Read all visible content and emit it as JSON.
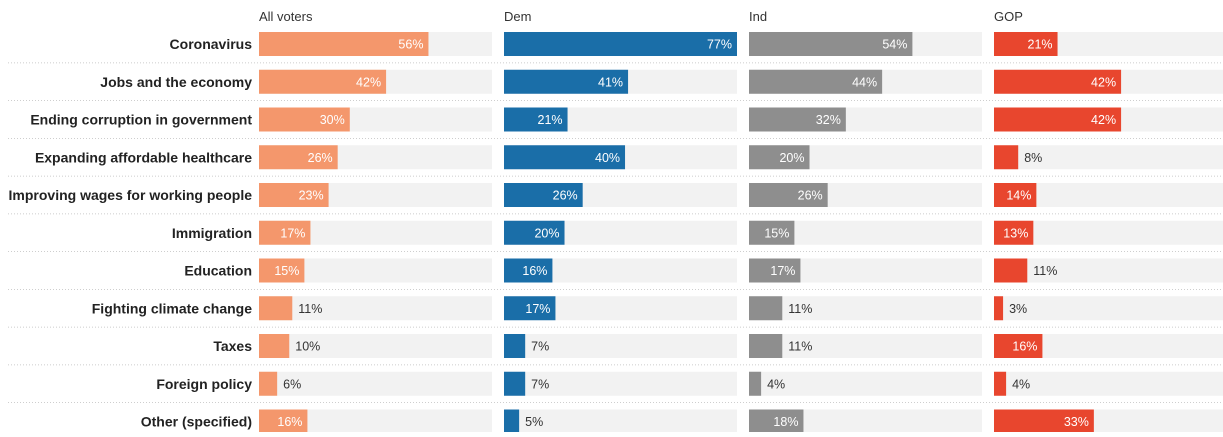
{
  "chart_data": {
    "type": "bar",
    "orientation": "horizontal",
    "layout": "small-multiples",
    "categories": [
      "Coronavirus",
      "Jobs and the economy",
      "Ending corruption in government",
      "Expanding affordable healthcare",
      "Improving wages for working people",
      "Immigration",
      "Education",
      "Fighting climate change",
      "Taxes",
      "Foreign policy",
      "Other (specified)"
    ],
    "series": [
      {
        "name": "All voters",
        "color": "#f4976c",
        "values": [
          56,
          42,
          30,
          26,
          23,
          17,
          15,
          11,
          10,
          6,
          16
        ]
      },
      {
        "name": "Dem",
        "color": "#1a6ea8",
        "values": [
          77,
          41,
          21,
          40,
          26,
          20,
          16,
          17,
          7,
          7,
          5
        ]
      },
      {
        "name": "Ind",
        "color": "#8e8e8e",
        "values": [
          54,
          44,
          32,
          20,
          26,
          15,
          17,
          11,
          11,
          4,
          18
        ]
      },
      {
        "name": "GOP",
        "color": "#e8462e",
        "values": [
          21,
          42,
          42,
          8,
          14,
          13,
          11,
          3,
          16,
          4,
          33
        ]
      }
    ],
    "value_suffix": "%",
    "xlim": [
      0,
      77
    ],
    "background_track_color": "#f2f2f2",
    "grid": false,
    "legend": "column headers at top"
  }
}
